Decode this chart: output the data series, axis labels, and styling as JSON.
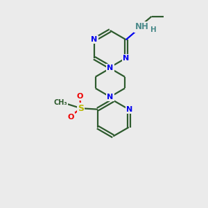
{
  "background_color": "#ebebeb",
  "bond_color": "#2d5a2d",
  "nitrogen_color": "#0000ee",
  "sulfur_color": "#b8b800",
  "oxygen_color": "#ee0000",
  "nh_color": "#4a8a8a",
  "line_width": 1.6,
  "figsize": [
    3.0,
    3.0
  ],
  "dpi": 100,
  "xlim": [
    0,
    10
  ],
  "ylim": [
    0,
    10
  ]
}
